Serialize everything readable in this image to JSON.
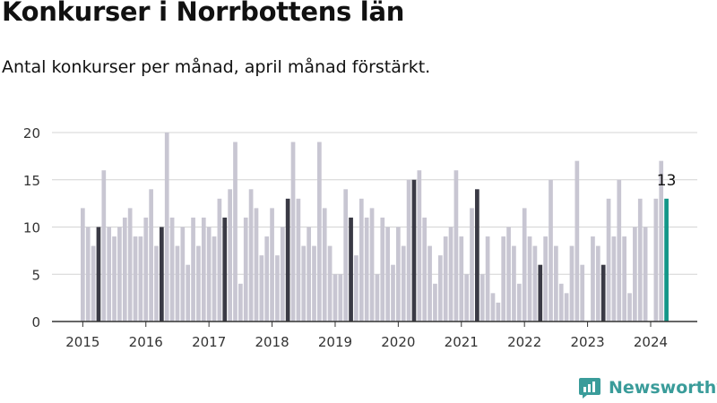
{
  "title": "Konkurser i Norrbottens län",
  "subtitle": "Antal konkurser per månad, april månad förstärkt.",
  "brand": {
    "name": "Newsworthy",
    "icon": "newsworthy-logo-icon",
    "color": "#3a9c9a"
  },
  "chart_data": {
    "type": "bar",
    "grid": true,
    "ylim": [
      0,
      20
    ],
    "yticks": [
      0,
      5,
      10,
      15,
      20
    ],
    "xtick_labels": [
      "2015",
      "2016",
      "2017",
      "2018",
      "2019",
      "2020",
      "2021",
      "2022",
      "2023",
      "2024"
    ],
    "start": "2015-01",
    "series": [
      {
        "values": [
          12,
          10,
          8,
          10,
          16,
          10,
          9,
          10,
          11,
          12,
          9,
          9,
          11,
          14,
          8,
          10,
          20,
          11,
          8,
          10,
          6,
          11,
          8,
          11,
          10,
          9,
          13,
          11,
          14,
          19,
          4,
          11,
          14,
          12,
          7,
          9,
          12,
          7,
          10,
          13,
          19,
          13,
          8,
          10,
          8,
          19,
          12,
          8,
          5,
          5,
          14,
          11,
          7,
          13,
          11,
          12,
          5,
          11,
          10,
          6,
          10,
          8,
          15,
          15,
          16,
          11,
          8,
          4,
          7,
          9,
          10,
          16,
          9,
          5,
          12,
          14,
          5,
          9,
          3,
          2,
          9,
          10,
          8,
          4,
          12,
          9,
          8,
          6,
          9,
          15,
          8,
          4,
          3,
          8,
          17,
          6,
          0,
          9,
          8,
          6,
          13,
          9,
          15,
          9,
          3,
          10,
          13,
          10,
          0,
          13,
          17,
          13
        ]
      }
    ],
    "highlight_month": "april",
    "colors": {
      "bar": "#c8c6d2",
      "highlight": "#3a3a45",
      "latest": "#139688",
      "grid": "#d4d4d4",
      "axis": "#333333"
    },
    "annotations": [
      {
        "label": "13",
        "target": "2024-04"
      }
    ]
  }
}
